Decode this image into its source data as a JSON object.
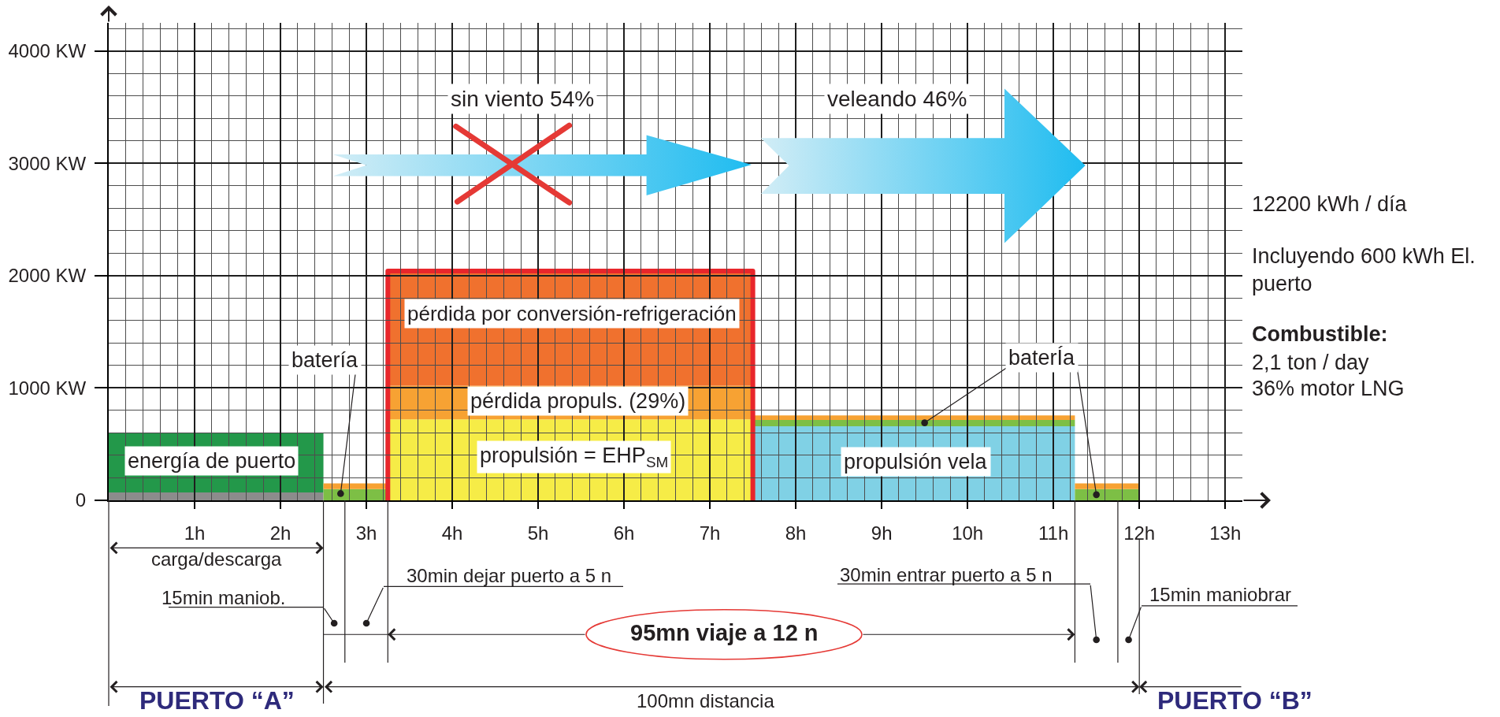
{
  "chart_data": {
    "type": "area",
    "stacked": true,
    "x": [
      0,
      2.5,
      2.5,
      2.75,
      3.25,
      3.25,
      7.5,
      7.5,
      11.25,
      11.25,
      11.75,
      12
    ],
    "series": [
      {
        "color": "#8c8c8c",
        "values": [
          70,
          70,
          null,
          null,
          null,
          null,
          null,
          null,
          null,
          null,
          null,
          null
        ]
      },
      {
        "color": "#23984a",
        "values": [
          530,
          530,
          null,
          null,
          null,
          null,
          null,
          null,
          null,
          null,
          null,
          null
        ]
      },
      {
        "color": "#80d1e5",
        "values": [
          null,
          null,
          null,
          null,
          null,
          null,
          null,
          660,
          660,
          null,
          null,
          null
        ]
      },
      {
        "color": "#f6ec47",
        "values": [
          null,
          null,
          null,
          null,
          null,
          720,
          720,
          null,
          null,
          null,
          null,
          null
        ]
      },
      {
        "color": "#7dbf45",
        "values": [
          null,
          null,
          100,
          100,
          100,
          null,
          null,
          55,
          55,
          100,
          100,
          100
        ]
      },
      {
        "color": "#f7a233",
        "values": [
          null,
          null,
          50,
          50,
          50,
          300,
          300,
          40,
          40,
          50,
          50,
          50
        ]
      },
      {
        "color": "#f0712e",
        "values": [
          null,
          null,
          null,
          null,
          null,
          1020,
          1020,
          null,
          null,
          null,
          null,
          null
        ]
      },
      {
        "type": "line",
        "color": "#e8262b",
        "values": [
          null,
          null,
          null,
          null,
          0,
          2040,
          2040,
          0,
          null,
          null,
          null,
          null
        ]
      }
    ],
    "xlim": [
      0,
      13.2
    ],
    "ylim": [
      0,
      4250
    ],
    "xticks": [
      {
        "value": 1,
        "label": "1h"
      },
      {
        "value": 2,
        "label": "2h"
      },
      {
        "value": 3,
        "label": "3h"
      },
      {
        "value": 4,
        "label": "4h"
      },
      {
        "value": 5,
        "label": "5h"
      },
      {
        "value": 6,
        "label": "6h"
      },
      {
        "value": 7,
        "label": "7h"
      },
      {
        "value": 8,
        "label": "8h"
      },
      {
        "value": 9,
        "label": "9h"
      },
      {
        "value": 10,
        "label": "10h"
      },
      {
        "value": 11,
        "label": "11h"
      },
      {
        "value": 12,
        "label": "12h"
      },
      {
        "value": 13,
        "label": "13h"
      }
    ],
    "yticks": [
      {
        "value": 0,
        "label": "0"
      },
      {
        "value": 1000,
        "label": "1000 KW"
      },
      {
        "value": 2000,
        "label": "2000 KW"
      },
      {
        "value": 3000,
        "label": "3000 KW"
      },
      {
        "value": 4000,
        "label": "4000 KW"
      }
    ],
    "grid": true,
    "annotations": [
      "sin viento 54%",
      "veleando 46%",
      "pérdida por conversión-refrigeración",
      {
        "text": "batería",
        "x": 2.7,
        "y": 60
      },
      {
        "text": "baterÍa",
        "x": 9.5,
        "y": 690
      },
      "pérdida propuls. (29%)",
      "energía de puerto",
      "propulsión = EHP$_{SM}$",
      "propulsión vela",
      "12200 kWh / día",
      "Incluyendo 600 kWh El.\npuerto",
      "Combustible:",
      "2,1 ton / day",
      "36% motor LNG",
      "carga/descarga",
      "15min maniob.",
      "30min dejar puerto a 5 n",
      "95mn viaje a 12 n",
      "30min entrar puerto a 5 n",
      "15min maniobrar",
      "PUERTO “A”",
      "100mn distancia",
      "PUERTO “B”"
    ]
  }
}
